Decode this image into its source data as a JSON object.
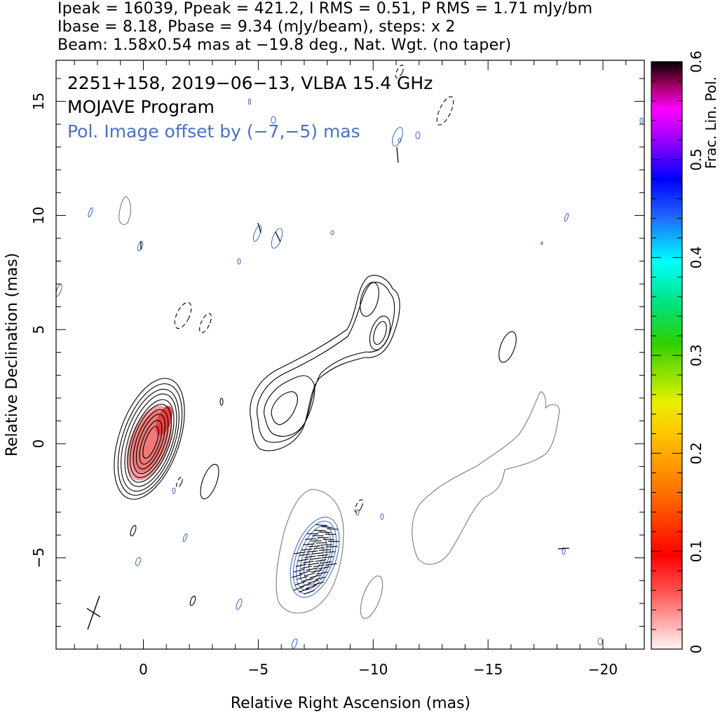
{
  "header": {
    "line1": "Ipeak = 16039, Ppeak = 421.2, I RMS = 0.51, P RMS = 1.71 mJy/bm",
    "line2": "Ibase = 8.18, Pbase = 9.34 (mJy/beam), steps: x 2",
    "line3": "Beam: 1.58x0.54 mas at −19.8 deg., Nat. Wgt. (no taper)"
  },
  "annotations": {
    "source": "2251+158, 2019−06−13, VLBA 15.4 GHz",
    "program": "MOJAVE Program",
    "offset_note": "Pol. Image offset by (−7,−5) mas"
  },
  "colors": {
    "total_intensity_contour": "#000000",
    "offset_intensity_contour": "#7a7a7a",
    "polarization_contour": "#4a70c8",
    "frac_pol_core": "#f07070"
  },
  "chart_data": {
    "type": "contour",
    "xlabel": "Relative Right Ascension (mas)",
    "ylabel": "Relative Declination (mas)",
    "xlim": [
      3.8,
      -21.8
    ],
    "ylim": [
      -9,
      16.8
    ],
    "xticks": [
      0,
      -5,
      -10,
      -15,
      -20
    ],
    "xtick_labels": [
      "0",
      "−5",
      "−10",
      "−15",
      "−20"
    ],
    "yticks": [
      -5,
      0,
      5,
      10,
      15
    ],
    "ytick_labels": [
      "−5",
      "0",
      "5",
      "10",
      "15"
    ],
    "colorbar": {
      "label": "Frac. Lin. Pol.",
      "range": [
        0,
        0.6
      ],
      "ticks": [
        0,
        0.1,
        0.2,
        0.3,
        0.4,
        0.5,
        0.6
      ],
      "tick_labels": [
        "0",
        "0.1",
        "0.2",
        "0.3",
        "0.4",
        "0.5",
        "0.6"
      ]
    },
    "peaks": {
      "I_peak_mJy_per_beam": 16039,
      "P_peak_mJy_per_beam": 421.2,
      "I_rms_mJy_per_beam": 0.51,
      "P_rms_mJy_per_beam": 1.71,
      "I_base_mJy_per_beam": 8.18,
      "P_base_mJy_per_beam": 9.34,
      "contour_step_factor": 2
    },
    "beam": {
      "major_mas": 1.58,
      "minor_mas": 0.54,
      "pa_deg": -19.8,
      "weighting": "Nat. Wgt. (no taper)"
    },
    "pol_offset_mas": [
      -7,
      -5
    ],
    "core": {
      "x": -0.6,
      "y": 0,
      "contour_levels": 10
    },
    "jet_knots": [
      {
        "x": -6.2,
        "y": 1.6
      },
      {
        "x": -10.2,
        "y": 4.9
      },
      {
        "x": -10.5,
        "y": 6.1
      }
    ]
  }
}
